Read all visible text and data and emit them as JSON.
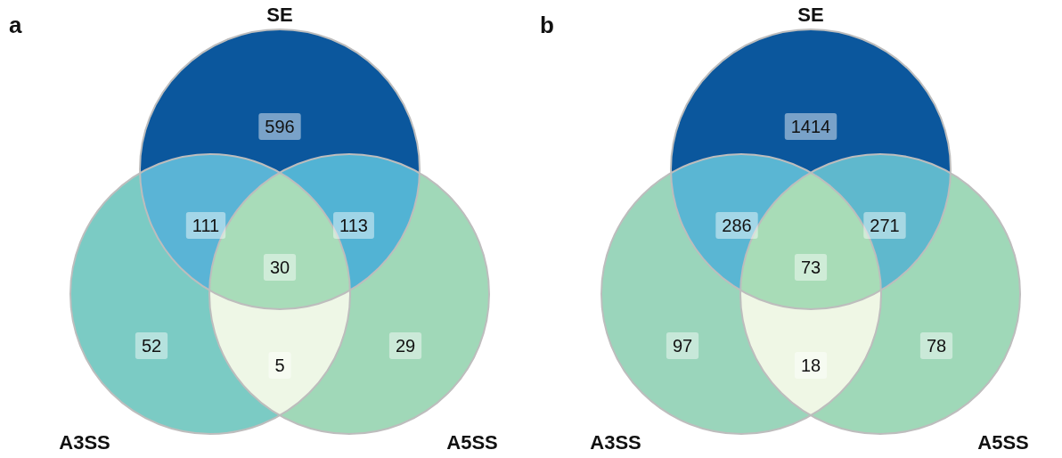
{
  "chart_data": [
    {
      "type": "other",
      "title": "a",
      "annotations": [
        "SE",
        "A3SS",
        "A5SS"
      ],
      "categories": [
        null,
        null,
        null,
        null,
        null,
        null,
        null
      ],
      "values": [
        596,
        111,
        113,
        30,
        52,
        5,
        29
      ],
      "colors": [
        "#0b579d",
        "#5ab4d6",
        "#52b3d4",
        "#a8dcb9",
        "#7bcbc4",
        "#eef7e6",
        "#a0d8b8"
      ],
      "data_labels": true
    },
    {
      "type": "other",
      "title": "b",
      "annotations": [
        "SE",
        "A3SS",
        "A5SS"
      ],
      "categories": [
        null,
        null,
        null,
        null,
        null,
        null,
        null
      ],
      "values": [
        1414,
        286,
        271,
        73,
        97,
        18,
        78
      ],
      "colors": [
        "#0b579d",
        "#5ab6d3",
        "#5fb8cd",
        "#a8dcb7",
        "#9ad5bb",
        "#eff7e5",
        "#9fd8b8"
      ],
      "data_labels": true
    }
  ]
}
